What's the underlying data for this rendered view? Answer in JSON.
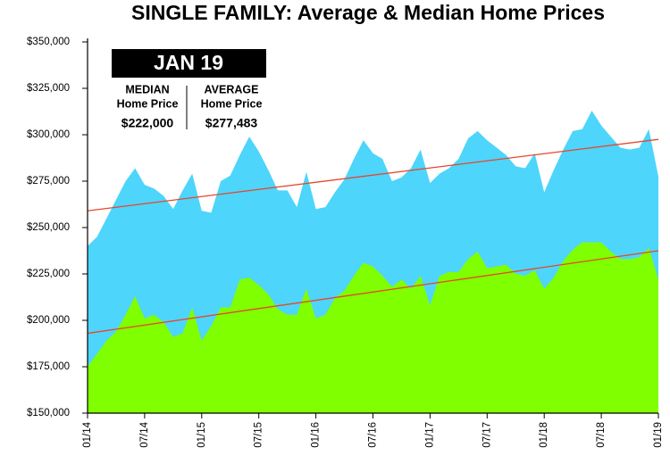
{
  "chart_data": {
    "type": "area",
    "title": "SINGLE FAMILY: Average & Median Home Prices",
    "categories": [
      "01/14",
      null,
      null,
      null,
      null,
      null,
      "07/14",
      null,
      null,
      null,
      null,
      null,
      "01/15",
      null,
      null,
      null,
      null,
      null,
      "07/15",
      null,
      null,
      null,
      null,
      null,
      "01/16",
      null,
      null,
      null,
      null,
      null,
      "07/16",
      null,
      null,
      null,
      null,
      null,
      "01/17",
      null,
      null,
      null,
      null,
      null,
      "07/17",
      null,
      null,
      null,
      null,
      null,
      "01/18",
      null,
      null,
      null,
      null,
      null,
      "07/18",
      null,
      null,
      null,
      null,
      null,
      "01/19"
    ],
    "series": [
      {
        "color": "#4dd5fb",
        "values": [
          240000,
          245000,
          255000,
          265000,
          275000,
          282000,
          273000,
          271000,
          267000,
          260000,
          270000,
          279000,
          259000,
          258000,
          275000,
          278000,
          289000,
          299000,
          291000,
          281000,
          270000,
          270000,
          261000,
          280000,
          260000,
          261000,
          269000,
          276000,
          287000,
          297000,
          290000,
          287000,
          275000,
          277000,
          282000,
          292000,
          274000,
          279000,
          282000,
          287000,
          298000,
          302000,
          297000,
          293000,
          289000,
          283000,
          282000,
          290000,
          269000,
          281000,
          292000,
          302000,
          303000,
          313000,
          305000,
          299000,
          293000,
          292000,
          293000,
          303000,
          277483
        ]
      },
      {
        "color": "#80ff00",
        "values": [
          175000,
          182000,
          189000,
          194000,
          203000,
          213000,
          201000,
          203000,
          199000,
          191000,
          193000,
          207000,
          189000,
          197000,
          207000,
          207000,
          222000,
          223000,
          219000,
          214000,
          206000,
          203000,
          203000,
          217000,
          201000,
          203000,
          212000,
          216000,
          224000,
          231000,
          229000,
          224000,
          218000,
          222000,
          217000,
          224000,
          208000,
          224000,
          226000,
          226000,
          233000,
          237000,
          228000,
          229000,
          230000,
          225000,
          224000,
          227000,
          217000,
          223000,
          232000,
          238000,
          242000,
          242000,
          242000,
          237000,
          233000,
          233000,
          234000,
          239000,
          222000
        ]
      }
    ],
    "trendlines": [
      {
        "color": "#e8452c",
        "values": [
          259000,
          297500
        ]
      },
      {
        "color": "#e8452c",
        "values": [
          193000,
          237500
        ]
      }
    ],
    "ylim": [
      150000,
      350000
    ],
    "yticks": [
      {
        "value": 150000,
        "label": "$150,000"
      },
      {
        "value": 175000,
        "label": "$175,000"
      },
      {
        "value": 200000,
        "label": "$200,000"
      },
      {
        "value": 225000,
        "label": "$225,000"
      },
      {
        "value": 250000,
        "label": "$250,000"
      },
      {
        "value": 275000,
        "label": "$275,000"
      },
      {
        "value": 300000,
        "label": "$300,000"
      },
      {
        "value": 325000,
        "label": "$325,000"
      },
      {
        "value": 350000,
        "label": "$350,000"
      }
    ],
    "annotations": {
      "box_title": "JAN 19",
      "median": {
        "label": "MEDIAN",
        "sub": "Home Price",
        "value": "$222,000"
      },
      "average": {
        "label": "AVERAGE",
        "sub": "Home Price",
        "value": "$277,483"
      }
    }
  }
}
